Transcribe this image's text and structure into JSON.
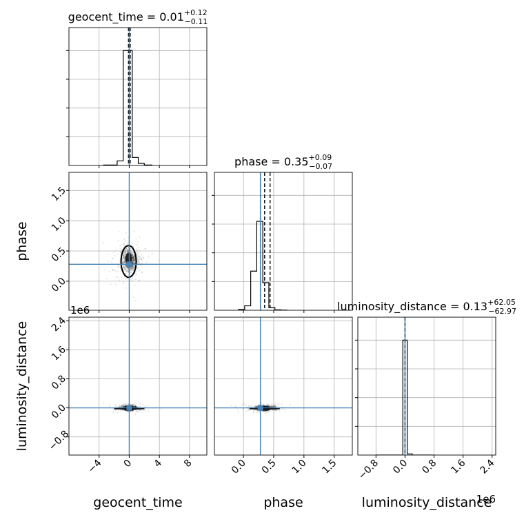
{
  "chart_data": {
    "type": "corner",
    "parameters": [
      {
        "name": "geocent_time",
        "axis_label": "geocent_time",
        "title": {
          "prefix": "geocent_time = 0.01",
          "upper": "+0.12",
          "lower": "−0.11"
        },
        "range": [
          -8,
          10.3
        ],
        "ticks": [
          -4,
          0,
          4,
          8
        ],
        "tick_labels": [
          "−4",
          "0",
          "4",
          "8"
        ],
        "truth": 0.0,
        "quantiles": [
          -0.1,
          0.01,
          0.13
        ],
        "hist_edges": [
          -3.4,
          -1.6,
          -0.8,
          -0.4,
          0.4,
          1.2,
          2.0,
          3.0
        ],
        "hist_counts": [
          0.004,
          0.04,
          1.0,
          1.0,
          0.07,
          0.018,
          0.004
        ],
        "hist_max": 1.2,
        "offset": ""
      },
      {
        "name": "phase",
        "axis_label": "phase",
        "title": {
          "prefix": "phase = 0.35",
          "upper": "+0.09",
          "lower": "−0.07"
        },
        "range": [
          -0.48,
          1.8
        ],
        "ticks": [
          0.0,
          0.5,
          1.0,
          1.5
        ],
        "tick_labels": [
          "0.0",
          "0.5",
          "1.0",
          "1.5"
        ],
        "truth": 0.28,
        "quantiles": [
          0.28,
          0.35,
          0.44
        ],
        "hist_edges": [
          -0.08,
          0.02,
          0.12,
          0.22,
          0.32,
          0.42,
          0.52,
          0.62,
          0.72
        ],
        "hist_counts": [
          0.01,
          0.05,
          0.44,
          1.0,
          0.31,
          0.03,
          0.005,
          0.002
        ],
        "hist_max": 1.55,
        "offset": ""
      },
      {
        "name": "luminosity_distance",
        "axis_label": "luminosity_distance",
        "title": {
          "prefix": "luminosity_distance = 0.13",
          "upper": "+62.05",
          "lower": "−62.97"
        },
        "range": [
          -1.3,
          2.5
        ],
        "ticks": [
          -0.8,
          0.0,
          0.8,
          1.6,
          2.4
        ],
        "tick_labels": [
          "−0.8",
          "0.0",
          "0.8",
          "1.6",
          "2.4"
        ],
        "truth": 0.0,
        "quantiles": [
          -6e-05,
          0.0,
          6e-05
        ],
        "hist_edges": [
          -0.8,
          -0.06,
          0.06,
          0.2,
          0.8
        ],
        "hist_counts": [
          0.0,
          1.0,
          0.01,
          0.0
        ],
        "hist_max": 1.2,
        "offset": "1e6"
      }
    ],
    "truth_color": "#4682b4",
    "hist_color": "#000000",
    "grid": true
  }
}
